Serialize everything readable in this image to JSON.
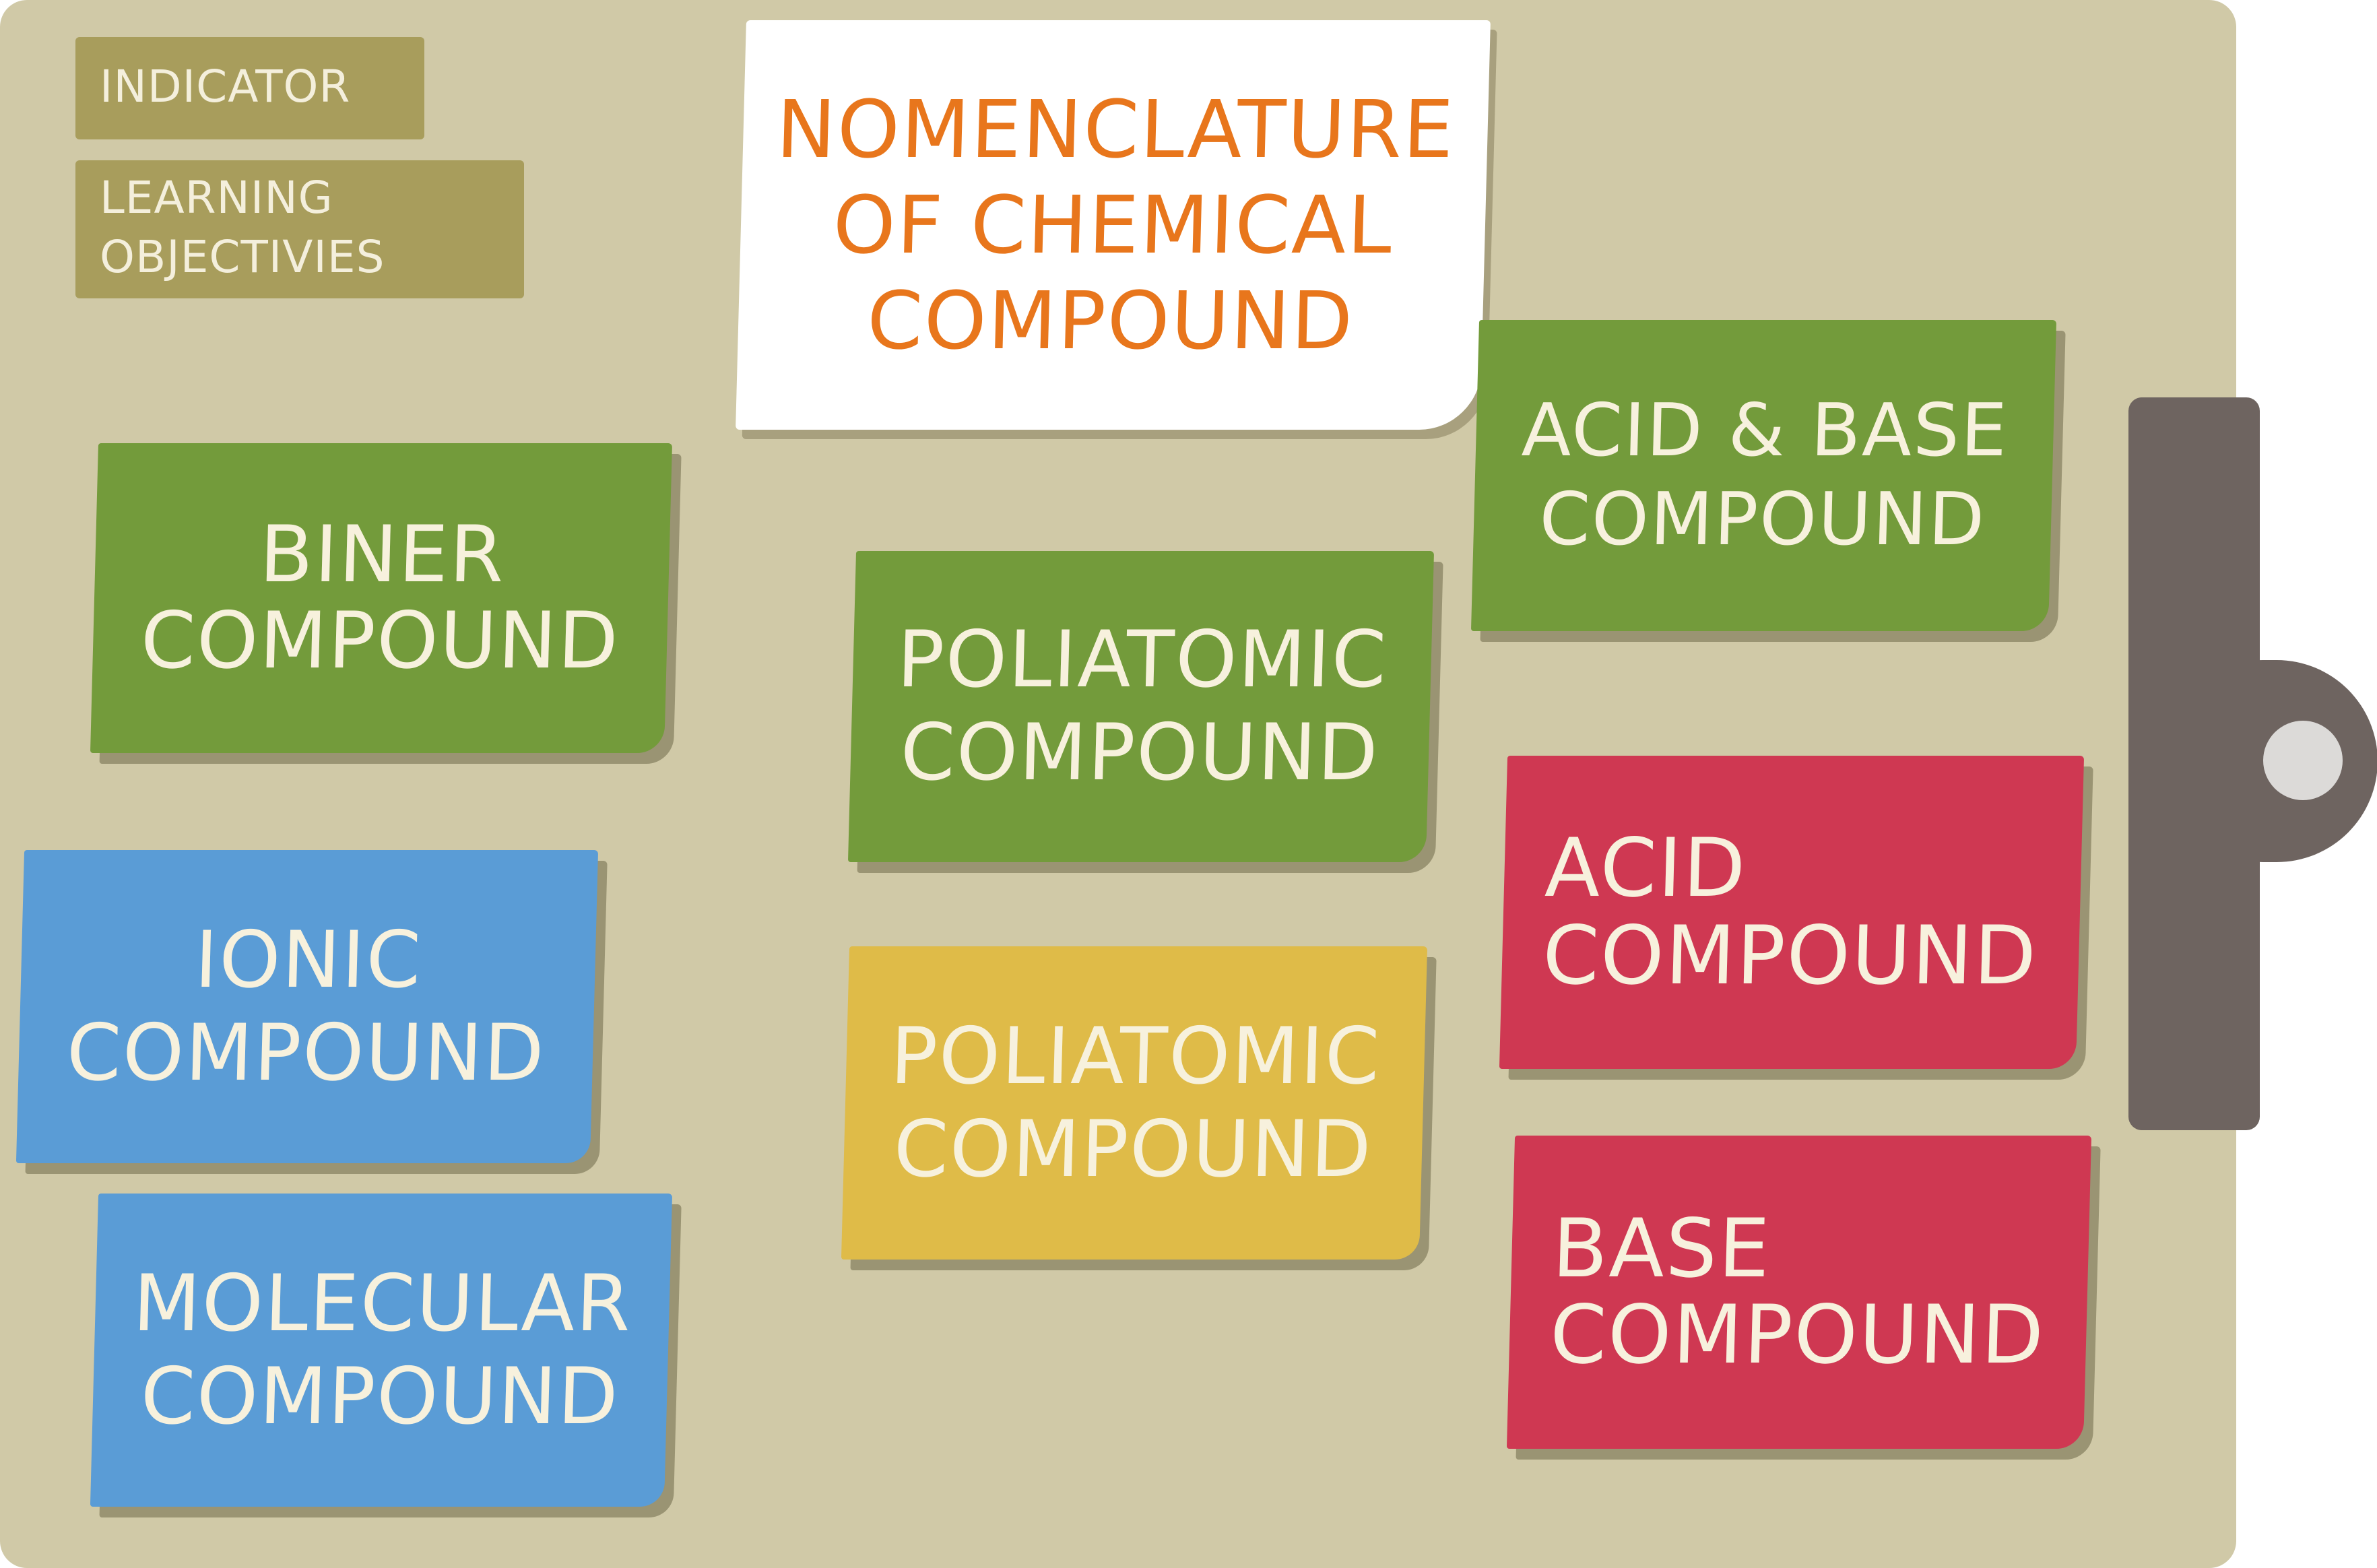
{
  "board": {
    "background_color": "#d0c9a7",
    "clip_color": "#6e6460"
  },
  "tags": {
    "indicator": "INDICATOR",
    "objectives_line1": "LEARNING",
    "objectives_line2": "OBJECTIVIES"
  },
  "title": {
    "line1": "NOMENCLATURE",
    "line2": "OF CHEMICAL",
    "line3": "COMPOUND",
    "color": "#e8761c"
  },
  "notes": {
    "biner": {
      "line1": "BINER",
      "line2": "COMPOUND",
      "color": "#739b3b"
    },
    "poliatomic_green": {
      "line1": "POLIATOMIC",
      "line2": "COMPOUND",
      "color": "#739b3b"
    },
    "acid_base": {
      "line1": "ACID & BASE",
      "line2": "COMPOUND",
      "color": "#739b3b"
    },
    "ionic": {
      "line1": "IONIC",
      "line2": "COMPOUND",
      "color": "#5a9cd6"
    },
    "poliatomic_yellow": {
      "line1": "POLIATOMIC",
      "line2": "COMPOUND",
      "color": "#dfbb48"
    },
    "acid": {
      "line1": "ACID",
      "line2": "COMPOUND",
      "color": "#cf3852"
    },
    "molecular": {
      "line1": "MOLECULAR",
      "line2": "COMPOUND",
      "color": "#5a9cd6"
    },
    "base": {
      "line1": "BASE",
      "line2": "COMPOUND",
      "color": "#cf3852"
    }
  }
}
